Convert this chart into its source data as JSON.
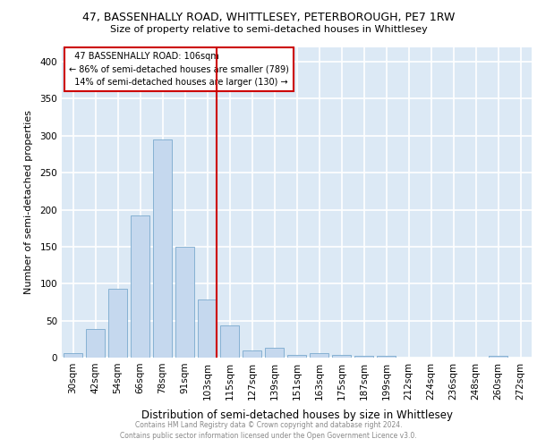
{
  "title_line1": "47, BASSENHALLY ROAD, WHITTLESEY, PETERBOROUGH, PE7 1RW",
  "title_line2": "Size of property relative to semi-detached houses in Whittlesey",
  "xlabel": "Distribution of semi-detached houses by size in Whittlesey",
  "ylabel": "Number of semi-detached properties",
  "categories": [
    "30sqm",
    "42sqm",
    "54sqm",
    "66sqm",
    "78sqm",
    "91sqm",
    "103sqm",
    "115sqm",
    "127sqm",
    "139sqm",
    "151sqm",
    "163sqm",
    "175sqm",
    "187sqm",
    "199sqm",
    "212sqm",
    "224sqm",
    "236sqm",
    "248sqm",
    "260sqm",
    "272sqm"
  ],
  "values": [
    6,
    39,
    93,
    192,
    295,
    150,
    78,
    43,
    10,
    13,
    4,
    6,
    4,
    2,
    2,
    0,
    0,
    0,
    0,
    3,
    0
  ],
  "bar_color": "#c5d8ee",
  "bar_edge_color": "#7aaace",
  "property_label": "47 BASSENHALLY ROAD: 106sqm",
  "pct_smaller": 86,
  "n_smaller": 789,
  "pct_larger": 14,
  "n_larger": 130,
  "vline_color": "#cc0000",
  "annotation_box_color": "#cc0000",
  "ylim": [
    0,
    420
  ],
  "yticks": [
    0,
    50,
    100,
    150,
    200,
    250,
    300,
    350,
    400
  ],
  "background_color": "#dce9f5",
  "grid_color": "#ffffff",
  "footer_line1": "Contains HM Land Registry data © Crown copyright and database right 2024.",
  "footer_line2": "Contains public sector information licensed under the Open Government Licence v3.0."
}
